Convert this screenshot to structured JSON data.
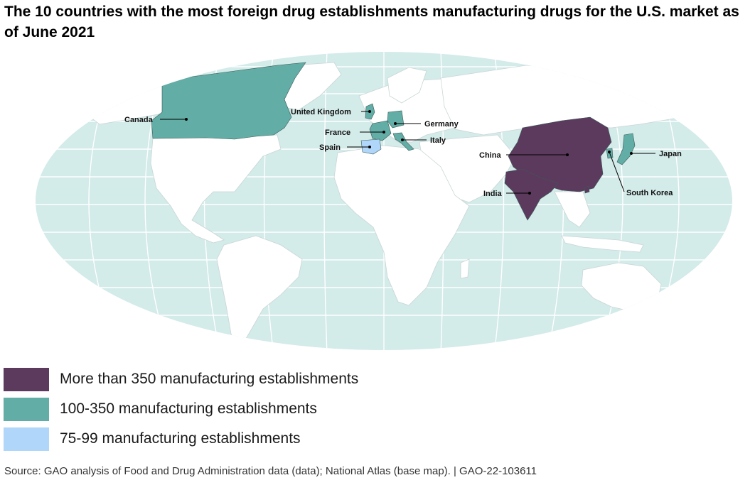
{
  "title": "The 10 countries with the most foreign drug establishments manufacturing drugs for the U.S. market as of June 2021",
  "colors": {
    "ocean": "#d3ebe9",
    "land": "#ffffff",
    "grid": "#ffffff",
    "more_than_350": "#5c3a5e",
    "range_100_350": "#62ada5",
    "range_75_99": "#b0d6fa"
  },
  "countries": [
    {
      "name": "Canada",
      "category": "100-350 manufacturing establishments"
    },
    {
      "name": "United Kingdom",
      "category": "100-350 manufacturing establishments"
    },
    {
      "name": "Germany",
      "category": "100-350 manufacturing establishments"
    },
    {
      "name": "France",
      "category": "100-350 manufacturing establishments"
    },
    {
      "name": "Italy",
      "category": "100-350 manufacturing establishments"
    },
    {
      "name": "Spain",
      "category": "75-99 manufacturing establishments"
    },
    {
      "name": "China",
      "category": "More than 350 manufacturing establishments"
    },
    {
      "name": "Japan",
      "category": "100-350 manufacturing establishments"
    },
    {
      "name": "India",
      "category": "More than 350 manufacturing establishments"
    },
    {
      "name": "South Korea",
      "category": "100-350 manufacturing establishments"
    }
  ],
  "legend": [
    {
      "label": "More than 350 manufacturing establishments",
      "color": "#5c3a5e"
    },
    {
      "label": "100-350 manufacturing establishments",
      "color": "#62ada5"
    },
    {
      "label": "75-99 manufacturing establishments",
      "color": "#b0d6fa"
    }
  ],
  "source": "Source: GAO analysis of Food and Drug Administration data (data); National Atlas (base map).  |  GAO-22-103611"
}
